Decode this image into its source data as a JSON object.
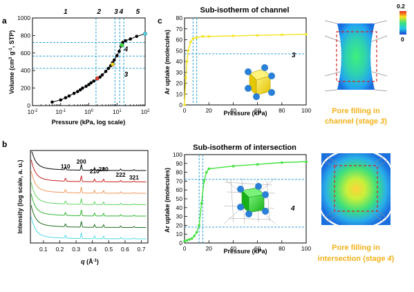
{
  "panels": {
    "a": "a",
    "b": "b",
    "c": "c"
  },
  "colors": {
    "isotherm_line": "#000000",
    "guide_dash": "#2a9fd6",
    "channel_curve": "#f5e31f",
    "intersection_curve": "#3ee23a",
    "caption": "#f2b21b"
  },
  "chart_data": [
    {
      "type": "scatter",
      "panel": "a",
      "title": "",
      "xlabel": "Pressure (kPa, log scale)",
      "ylabel": "Volume (cm3 g-1, STP)",
      "ylabel_parts": [
        "Volume (cm",
        "3",
        " g",
        "-1",
        ", STP)"
      ],
      "x_scale": "log",
      "xlim": [
        0.01,
        100
      ],
      "ylim": [
        0,
        1000
      ],
      "x_ticks": [
        0.01,
        0.1,
        1,
        10,
        100
      ],
      "x_tick_labels": [
        {
          "base": "10",
          "exp": "-2"
        },
        {
          "base": "10",
          "exp": "-1"
        },
        {
          "base": "10",
          "exp": "0"
        },
        {
          "base": "10",
          "exp": "1"
        },
        {
          "base": "10",
          "exp": "2"
        }
      ],
      "y_ticks": [
        0,
        200,
        400,
        600,
        800,
        1000
      ],
      "points": [
        {
          "x": 0.05,
          "y": 40
        },
        {
          "x": 0.1,
          "y": 65
        },
        {
          "x": 0.15,
          "y": 90
        },
        {
          "x": 0.2,
          "y": 110
        },
        {
          "x": 0.3,
          "y": 140
        },
        {
          "x": 0.4,
          "y": 160
        },
        {
          "x": 0.5,
          "y": 180
        },
        {
          "x": 0.6,
          "y": 200
        },
        {
          "x": 0.8,
          "y": 220
        },
        {
          "x": 1.0,
          "y": 240
        },
        {
          "x": 1.2,
          "y": 260
        },
        {
          "x": 1.5,
          "y": 280
        },
        {
          "x": 2.0,
          "y": 305
        },
        {
          "x": 2.5,
          "y": 325
        },
        {
          "x": 3.0,
          "y": 350
        },
        {
          "x": 4.0,
          "y": 390
        },
        {
          "x": 5.0,
          "y": 425
        },
        {
          "x": 6.0,
          "y": 455
        },
        {
          "x": 7.0,
          "y": 490
        },
        {
          "x": 8.0,
          "y": 520
        },
        {
          "x": 10.0,
          "y": 570
        },
        {
          "x": 12.0,
          "y": 620
        },
        {
          "x": 14.0,
          "y": 680
        },
        {
          "x": 16.0,
          "y": 720
        },
        {
          "x": 20.0,
          "y": 740
        },
        {
          "x": 30.0,
          "y": 760
        },
        {
          "x": 50.0,
          "y": 790
        },
        {
          "x": 100.0,
          "y": 820
        }
      ],
      "highlight_points": [
        {
          "x": 2.0,
          "y": 310,
          "color": "#e23b2e"
        },
        {
          "x": 7.0,
          "y": 470,
          "color": "#f5d21f"
        },
        {
          "x": 15.0,
          "y": 690,
          "color": "#3ee23a"
        },
        {
          "x": 100.0,
          "y": 820,
          "color": "#4fd8e6"
        }
      ],
      "hlines": [
        {
          "y": 720,
          "label": "4"
        },
        {
          "y": 565,
          "label": ""
        },
        {
          "y": 425,
          "label": "3"
        }
      ],
      "vlines": [
        1.8,
        8.5,
        12.5,
        17.5
      ],
      "stage_labels": [
        {
          "text": "1",
          "x": 0.15
        },
        {
          "text": "2",
          "x": 2.3
        },
        {
          "text": "3",
          "x": 9.3
        },
        {
          "text": "4",
          "x": 14.2
        },
        {
          "text": "5",
          "x": 55
        }
      ]
    },
    {
      "type": "line",
      "panel": "b",
      "xlabel": "q (Å-1)",
      "xlabel_parts": [
        "q",
        " (Å",
        "-1",
        ")"
      ],
      "ylabel": "Intensity (log scale, a. u.)",
      "xlim": [
        0.02,
        0.74
      ],
      "x_ticks": [
        0.1,
        0.2,
        0.3,
        0.4,
        0.5,
        0.6,
        0.7
      ],
      "x_tick_labels": [
        "0.1",
        "0.2",
        "0.3",
        "0.4",
        "0.5",
        "0.6",
        "0.7"
      ],
      "peaks": [
        {
          "q": 0.235,
          "label": "110"
        },
        {
          "q": 0.332,
          "label": "200"
        },
        {
          "q": 0.413,
          "label": "210"
        },
        {
          "q": 0.468,
          "label": "220"
        },
        {
          "q": 0.573,
          "label": "222"
        },
        {
          "q": 0.655,
          "label": "321"
        }
      ],
      "series": [
        {
          "color": "#000000",
          "offset": 6
        },
        {
          "color": "#c81e1e",
          "offset": 5
        },
        {
          "color": "#f09656",
          "offset": 4
        },
        {
          "color": "#5fd35f",
          "offset": 3
        },
        {
          "color": "#2fb52f",
          "offset": 2
        },
        {
          "color": "#1d6e1d",
          "offset": 1
        },
        {
          "color": "#4fd8e6",
          "offset": 0
        }
      ]
    },
    {
      "type": "line",
      "panel": "c-top",
      "title": "Sub-isotherm of channel",
      "xlabel": "Pressure (kPa)",
      "ylabel": "Ar uptake (molecules)",
      "xlim": [
        0,
        100
      ],
      "ylim": [
        0,
        80
      ],
      "x_ticks": [
        0,
        20,
        40,
        60,
        80,
        100
      ],
      "y_ticks": [
        0,
        10,
        20,
        30,
        40,
        50,
        60,
        70,
        80
      ],
      "x": [
        0,
        1,
        2,
        3,
        5,
        7,
        10,
        15,
        20,
        40,
        60,
        80,
        100
      ],
      "y": [
        0,
        25,
        40,
        50,
        58,
        61,
        62,
        63,
        63,
        63.5,
        64,
        64.5,
        65
      ],
      "hline": 47,
      "vlines": [
        7,
        10
      ],
      "stage_label": "3"
    },
    {
      "type": "line",
      "panel": "c-bottom",
      "title": "Sub-isotherm of intersection",
      "xlabel": "Pressure (kPa)",
      "ylabel": "Ar uptake (molecules)",
      "xlim": [
        0,
        100
      ],
      "ylim": [
        0,
        100
      ],
      "x_ticks": [
        0,
        20,
        40,
        60,
        80,
        100
      ],
      "y_ticks": [
        0,
        10,
        20,
        30,
        40,
        50,
        60,
        70,
        80,
        90,
        100
      ],
      "x": [
        0,
        2,
        4,
        6,
        8,
        10,
        12,
        14,
        16,
        18,
        20,
        40,
        60,
        80,
        100
      ],
      "y": [
        2,
        3,
        4,
        5,
        8,
        12,
        20,
        45,
        70,
        80,
        84,
        87,
        89,
        91,
        92
      ],
      "hlines": [
        72,
        18
      ],
      "vlines": [
        12,
        15
      ],
      "stage_label": "4"
    }
  ],
  "colorbar": {
    "max_label": "0.2",
    "min_label": "0"
  },
  "captions": {
    "channel_line1": "Pore filling in",
    "channel_line2": "channel (stage ",
    "channel_stage": "3",
    "intersection_line1": "Pore filling in",
    "intersection_line2": "intersection (stage ",
    "intersection_stage": "4",
    "close": ")"
  }
}
